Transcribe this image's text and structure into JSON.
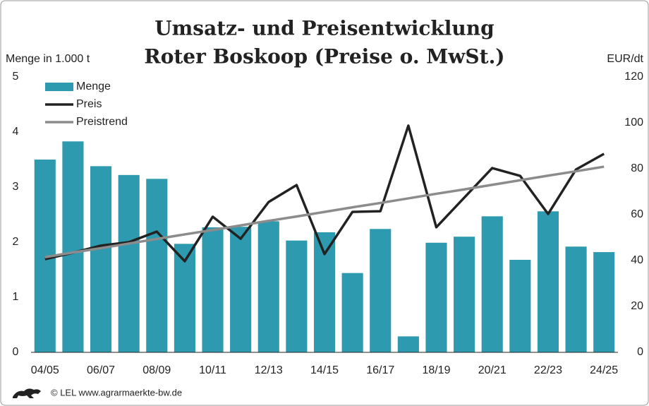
{
  "chart_data": {
    "type": "bar",
    "title": [
      "Umsatz- und Preisentwicklung",
      "Roter Boskoop (Preise o. MwSt.)"
    ],
    "y_label": "Menge in 1.000 t",
    "y2_label": "EUR/dt",
    "source": "© LEL www.agrarmaerkte-bw.de",
    "categories": [
      "04/05",
      null,
      "06/07",
      null,
      "08/09",
      null,
      "10/11",
      null,
      "12/13",
      null,
      "14/15",
      null,
      "16/17",
      null,
      "18/19",
      null,
      "20/21",
      null,
      "22/23",
      null,
      "24/25"
    ],
    "series": [
      {
        "name": "Menge",
        "type": "bar",
        "color": "#2e9aaf",
        "axis": "y",
        "values": [
          3.5,
          3.83,
          3.38,
          3.22,
          3.15,
          1.97,
          2.27,
          2.28,
          2.38,
          2.03,
          2.18,
          1.44,
          2.24,
          0.29,
          1.99,
          2.1,
          2.47,
          1.68,
          2.56,
          1.92,
          1.82
        ]
      },
      {
        "name": "Preis",
        "type": "line",
        "color": "#222222",
        "axis": "y2",
        "values": [
          40.6,
          43.4,
          46.5,
          48,
          52.6,
          39.7,
          59.1,
          49.5,
          65.5,
          72.9,
          42.8,
          61.2,
          61.5,
          98.8,
          54.5,
          67.4,
          80.3,
          76.9,
          60.3,
          79.7,
          86.5
        ]
      },
      {
        "name": "Preistrend",
        "type": "line",
        "color": "#8c8c8c",
        "axis": "y2",
        "values": [
          41.5,
          43.5,
          45.4,
          47.4,
          49.4,
          51.4,
          53.3,
          55.3,
          57.3,
          59.2,
          61.2,
          63.2,
          65.1,
          67.1,
          69.1,
          71.0,
          73.0,
          75.0,
          77.0,
          78.9,
          80.9
        ]
      }
    ],
    "ylim": [
      0,
      5
    ],
    "yticks": [
      0,
      1,
      2,
      3,
      4,
      5
    ],
    "y2lim": [
      0,
      120
    ],
    "y2ticks": [
      0,
      20,
      40,
      60,
      80,
      100,
      120
    ],
    "legend": "top-left",
    "grid": false
  }
}
